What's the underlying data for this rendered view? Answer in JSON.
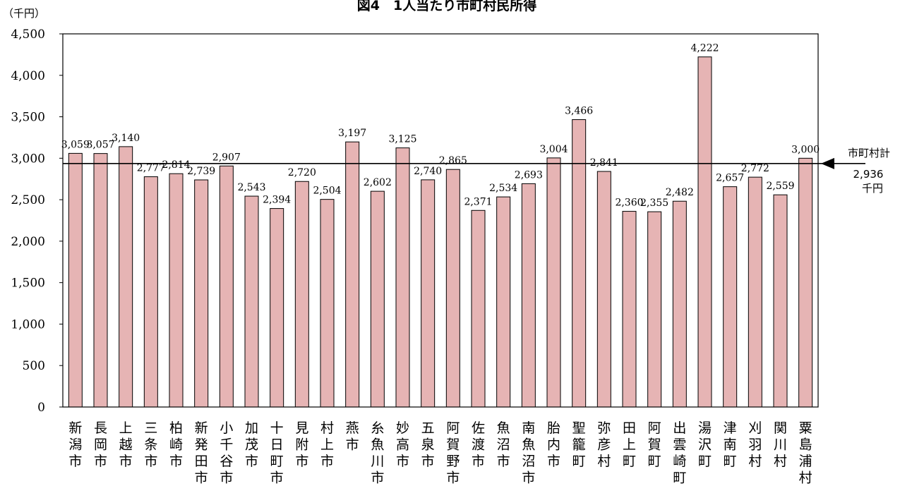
{
  "chart_data": {
    "type": "bar",
    "title": "図4　1人当たり市町村民所得",
    "unit": "（千円）",
    "ylim": [
      0,
      4500
    ],
    "yticks": [
      0,
      500,
      1000,
      1500,
      2000,
      2500,
      3000,
      3500,
      4000,
      4500
    ],
    "ytick_labels": [
      "0",
      "500",
      "1,000",
      "1,500",
      "2,000",
      "2,500",
      "3,000",
      "3,500",
      "4,000",
      "4,500"
    ],
    "categories": [
      "新潟市",
      "長岡市",
      "上越市",
      "三条市",
      "柏崎市",
      "新発田市",
      "小千谷市",
      "加茂市",
      "十日町市",
      "見附市",
      "村上市",
      "燕市",
      "糸魚川市",
      "妙高市",
      "五泉市",
      "阿賀野市",
      "佐渡市",
      "魚沼市",
      "南魚沼市",
      "胎内市",
      "聖籠町",
      "弥彦村",
      "田上町",
      "阿賀町",
      "出雲崎町",
      "湯沢町",
      "津南町",
      "刈羽村",
      "関川村",
      "粟島浦村"
    ],
    "values": [
      3059,
      3057,
      3140,
      2777,
      2814,
      2739,
      2907,
      2543,
      2394,
      2720,
      2504,
      3197,
      2602,
      3125,
      2740,
      2865,
      2371,
      2534,
      2693,
      3004,
      3466,
      2841,
      2360,
      2355,
      2482,
      4222,
      2657,
      2772,
      2559,
      3000
    ],
    "value_labels": [
      "3,059",
      "3,057",
      "3,140",
      "2,777",
      "2,814",
      "2,739",
      "2,907",
      "2,543",
      "2,394",
      "2,720",
      "2,504",
      "3,197",
      "2,602",
      "3,125",
      "2,740",
      "2,865",
      "2,371",
      "2,534",
      "2,693",
      "3,004",
      "3,466",
      "2,841",
      "2,360",
      "2,355",
      "2,482",
      "4,222",
      "2,657",
      "2,772",
      "2,559",
      "3,000"
    ],
    "reference_line": {
      "value": 2936,
      "label": "市町村計",
      "value_label": "2,936",
      "unit_label": "千円"
    },
    "colors": {
      "bar_fill": "#e6b4b4",
      "bar_stroke": "#000000",
      "line": "#000000"
    },
    "grid": false,
    "legend": "none"
  }
}
